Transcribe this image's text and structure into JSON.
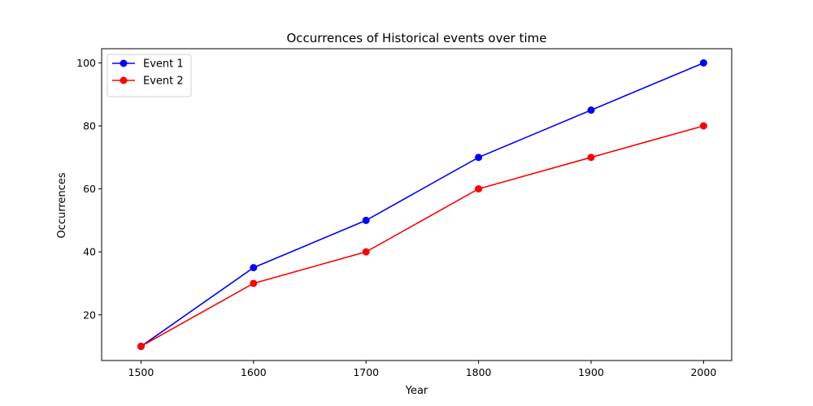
{
  "chart_data": {
    "type": "line",
    "title": "Occurrences of Historical events over time",
    "xlabel": "Year",
    "ylabel": "Occurrences",
    "x": [
      1500,
      1600,
      1700,
      1800,
      1900,
      2000
    ],
    "xlim": [
      1465,
      2025
    ],
    "ylim": [
      5.5,
      104.5
    ],
    "xticks": [
      1500,
      1600,
      1700,
      1800,
      1900,
      2000
    ],
    "yticks": [
      20,
      40,
      60,
      80,
      100
    ],
    "grid": false,
    "legend_position": "upper-left",
    "series": [
      {
        "name": "Event 1",
        "color": "#0000ff",
        "marker": "circle",
        "values": [
          10,
          35,
          50,
          70,
          85,
          100
        ]
      },
      {
        "name": "Event 2",
        "color": "#ff0000",
        "marker": "circle",
        "values": [
          10,
          30,
          40,
          60,
          70,
          80
        ]
      }
    ]
  }
}
